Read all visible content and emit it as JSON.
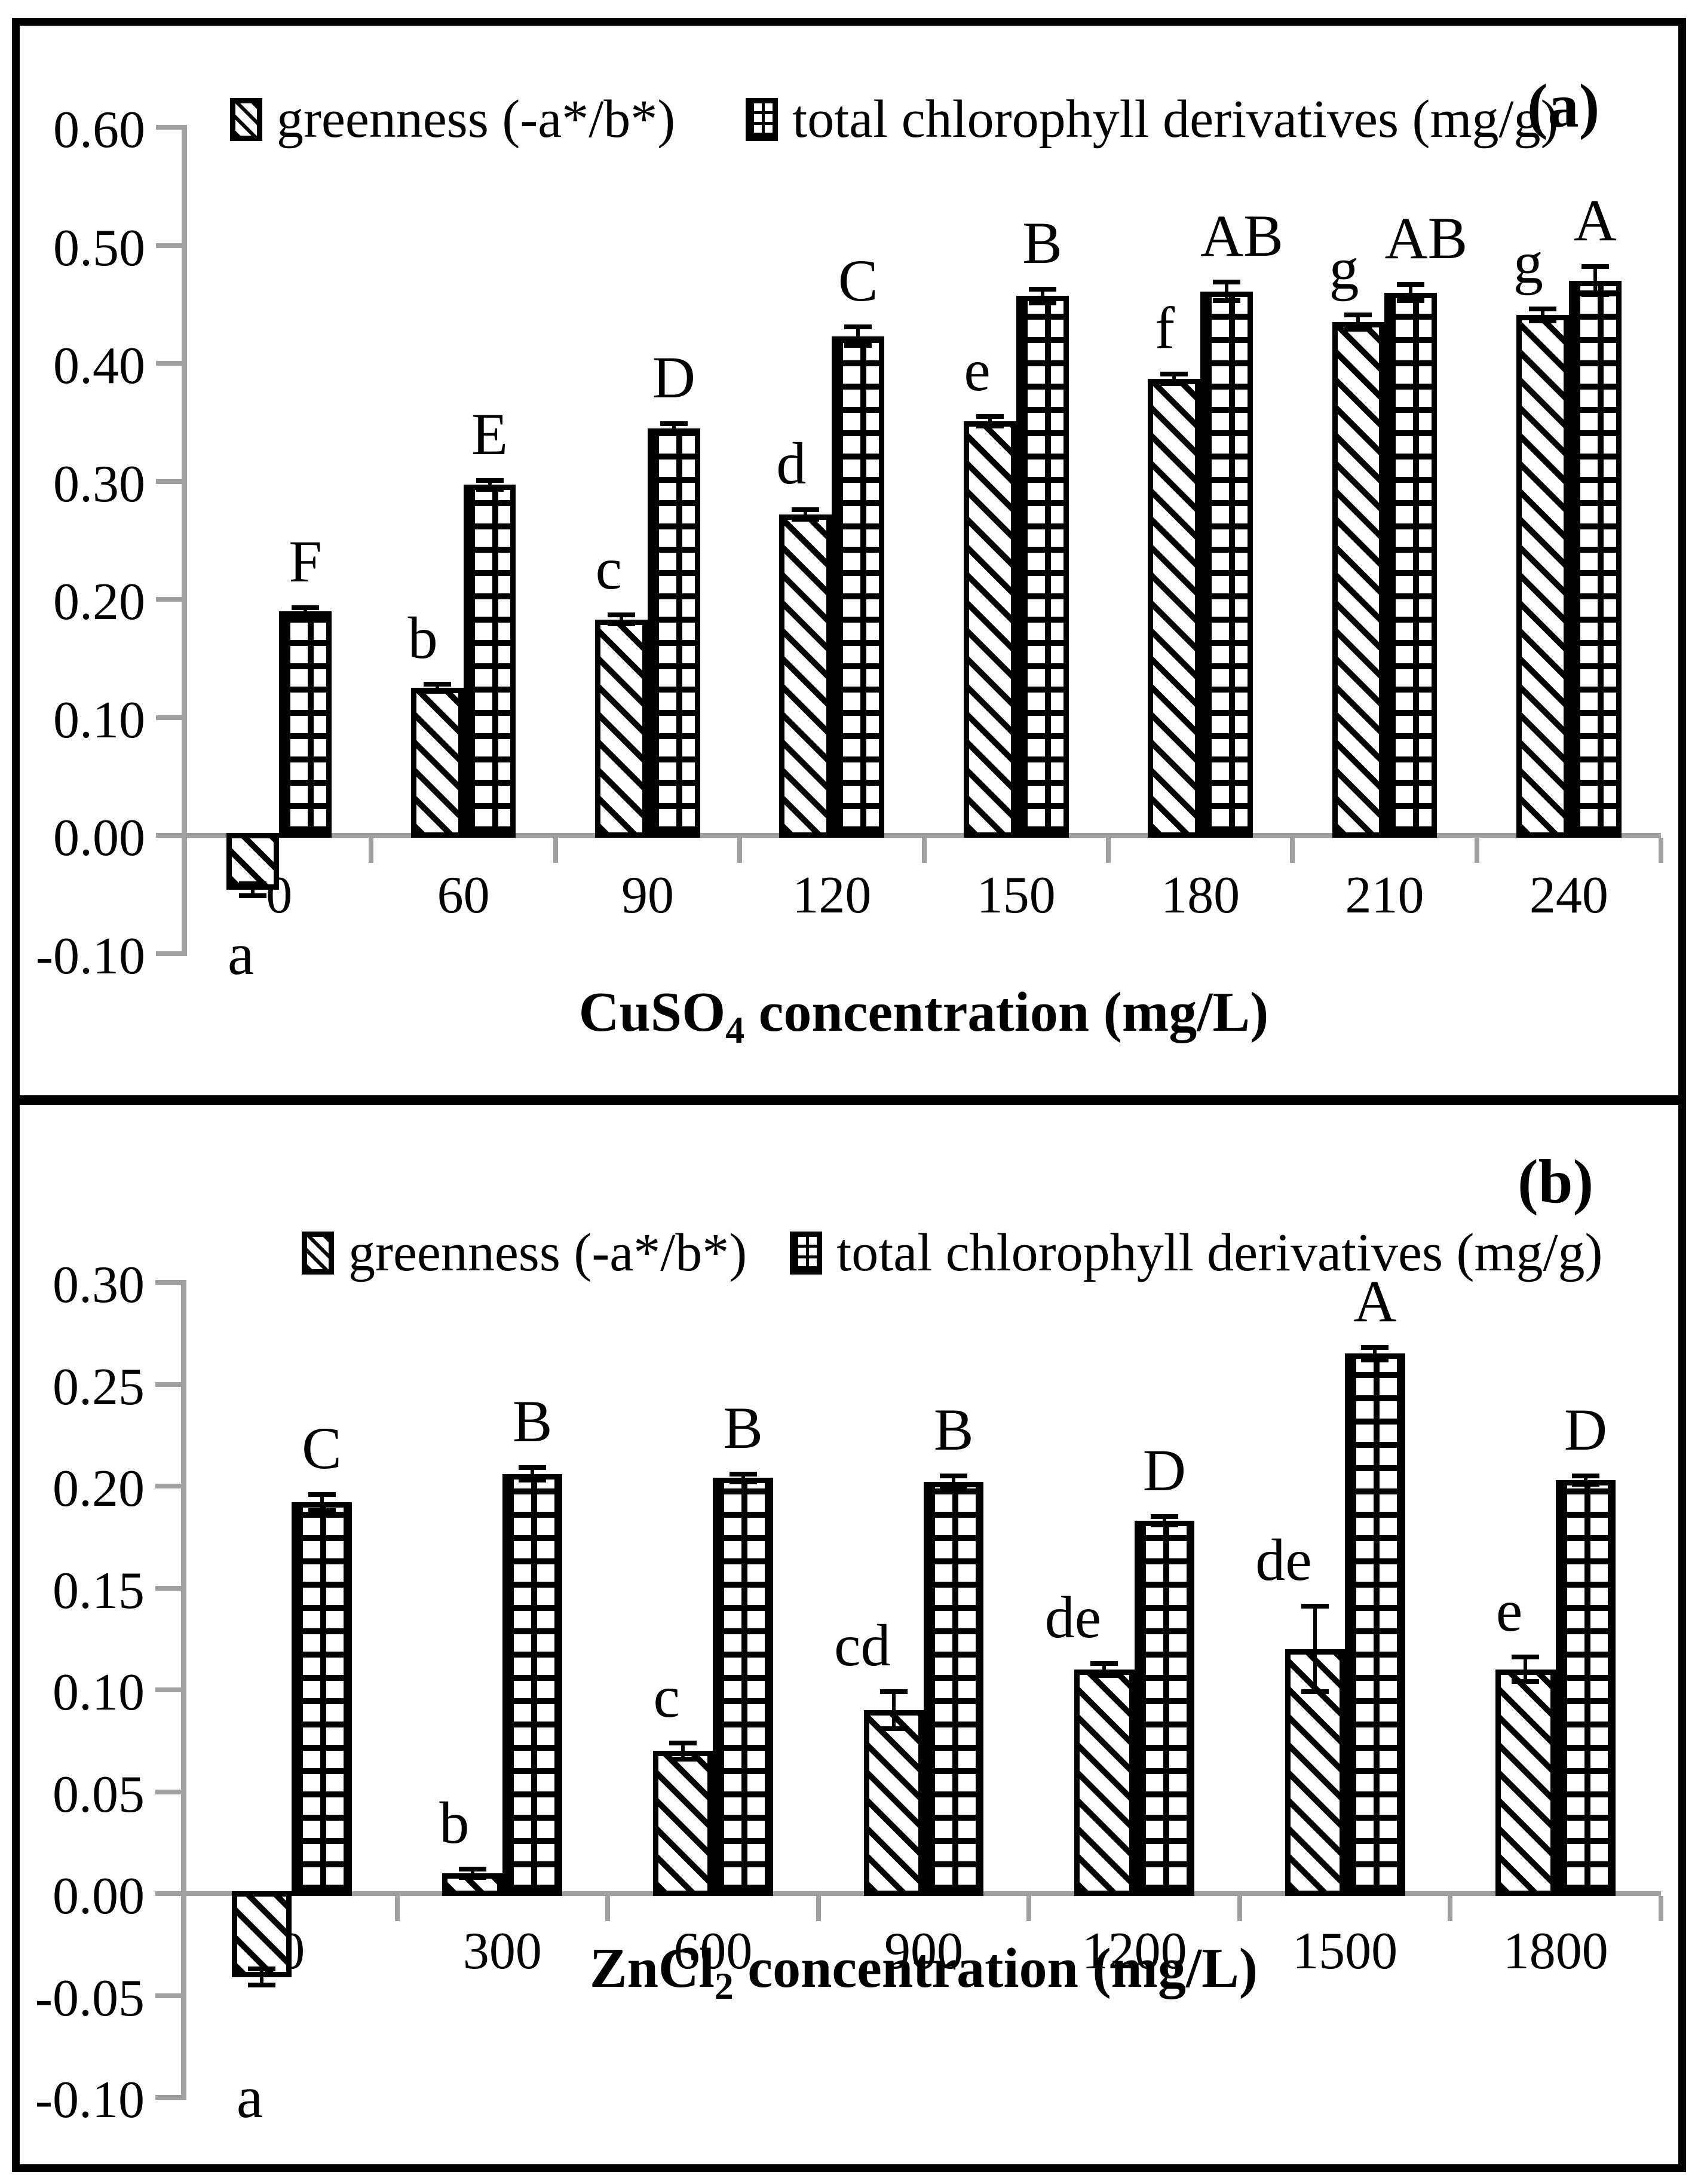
{
  "figure": {
    "panel_tags": [
      "(a)",
      "(b)"
    ],
    "legend_labels": [
      "greenness (-a*/b*)",
      "total chlorophyll derivatives (mg/g)"
    ],
    "colors": {
      "bar_outline": "#000000",
      "axis_gray": "#a0a0a0",
      "background": "#ffffff"
    }
  },
  "chart_data": [
    {
      "type": "bar",
      "panel": "(a)",
      "categories": [
        "0",
        "60",
        "90",
        "120",
        "150",
        "180",
        "210",
        "240"
      ],
      "xlabel": {
        "main": "CuSO",
        "sub": "4",
        "rest": " concentration (mg/L)"
      },
      "ylabel": "",
      "ylim": [
        -0.1,
        0.6
      ],
      "ytick_step": 0.1,
      "ytick_labels": [
        "0.60",
        "0.50",
        "0.40",
        "0.30",
        "0.20",
        "0.10",
        "0.00",
        "-0.10"
      ],
      "grid": false,
      "legend_position": "top",
      "series": [
        {
          "name": "greenness (-a*/b*)",
          "pattern": "diagonal-hatch",
          "values": [
            -0.046,
            0.125,
            0.183,
            0.272,
            0.351,
            0.387,
            0.435,
            0.441
          ],
          "errors": [
            0.005,
            0.003,
            0.004,
            0.004,
            0.004,
            0.004,
            0.006,
            0.005
          ],
          "letters": [
            "a",
            "b",
            "c",
            "d",
            "e",
            "f",
            "g",
            "g"
          ]
        },
        {
          "name": "total chlorophyll derivatives (mg/g)",
          "pattern": "grid-hatch",
          "values": [
            0.19,
            0.297,
            0.345,
            0.423,
            0.457,
            0.461,
            0.46,
            0.47
          ],
          "errors": [
            0.003,
            0.004,
            0.004,
            0.008,
            0.006,
            0.008,
            0.007,
            0.012
          ],
          "letters": [
            "F",
            "E",
            "D",
            "C",
            "B",
            "AB",
            "AB",
            "A"
          ]
        }
      ]
    },
    {
      "type": "bar",
      "panel": "(b)",
      "categories": [
        "0",
        "300",
        "600",
        "900",
        "1200",
        "1500",
        "1800"
      ],
      "xlabel": {
        "main": "ZnCl",
        "sub": "2",
        "rest": " concentration (mg/L)"
      },
      "ylabel": "",
      "ylim": [
        -0.1,
        0.3
      ],
      "ytick_step": 0.05,
      "ytick_labels": [
        "0.30",
        "0.25",
        "0.20",
        "0.15",
        "0.10",
        "0.05",
        "0.00",
        "-0.05",
        "-0.10"
      ],
      "grid": false,
      "legend_position": "top",
      "series": [
        {
          "name": "greenness (-a*/b*)",
          "pattern": "diagonal-hatch",
          "values": [
            -0.041,
            0.01,
            0.07,
            0.09,
            0.11,
            0.12,
            0.11
          ],
          "errors": [
            0.004,
            0.002,
            0.004,
            0.009,
            0.003,
            0.021,
            0.006
          ],
          "letters": [
            "a",
            "b",
            "c",
            "cd",
            "de",
            "de",
            "e"
          ]
        },
        {
          "name": "total chlorophyll derivatives (mg/g)",
          "pattern": "grid-hatch",
          "values": [
            0.192,
            0.206,
            0.204,
            0.202,
            0.183,
            0.265,
            0.203
          ],
          "errors": [
            0.004,
            0.003,
            0.002,
            0.003,
            0.002,
            0.003,
            0.002
          ],
          "letters": [
            "C",
            "B",
            "B",
            "B",
            "D",
            "A",
            "D"
          ]
        }
      ]
    }
  ]
}
